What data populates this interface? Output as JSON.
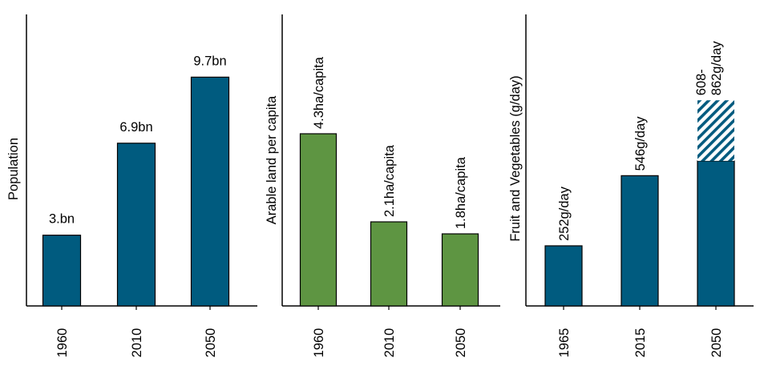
{
  "chart_data": [
    {
      "type": "bar",
      "ylabel": "Population",
      "categories": [
        "1960",
        "2010",
        "2050"
      ],
      "values": [
        3.0,
        6.9,
        9.7
      ],
      "data_labels": [
        "3.bn",
        "6.9bn",
        "9.7bn"
      ],
      "ylim": [
        0,
        12.36
      ],
      "color": "#005b7f"
    },
    {
      "type": "bar",
      "ylabel": "Arable land per capita",
      "categories": [
        "1960",
        "2010",
        "2050"
      ],
      "values": [
        4.3,
        2.1,
        1.8
      ],
      "data_labels": [
        "4.3ha/capita",
        "2.1ha/capita",
        "1.8ha/capita"
      ],
      "ylim": [
        0,
        7.28
      ],
      "color": "#5e9542"
    },
    {
      "type": "bar",
      "ylabel": "Fruit and Vegetables (g/day)",
      "categories": [
        "1965",
        "2015",
        "2050"
      ],
      "values": [
        252,
        546,
        608
      ],
      "range_high": [
        null,
        null,
        862
      ],
      "data_labels": [
        "252g/day",
        "546g/day",
        "608-\n862g/day"
      ],
      "ylim": [
        0,
        1222
      ],
      "color": "#005b7f"
    }
  ]
}
